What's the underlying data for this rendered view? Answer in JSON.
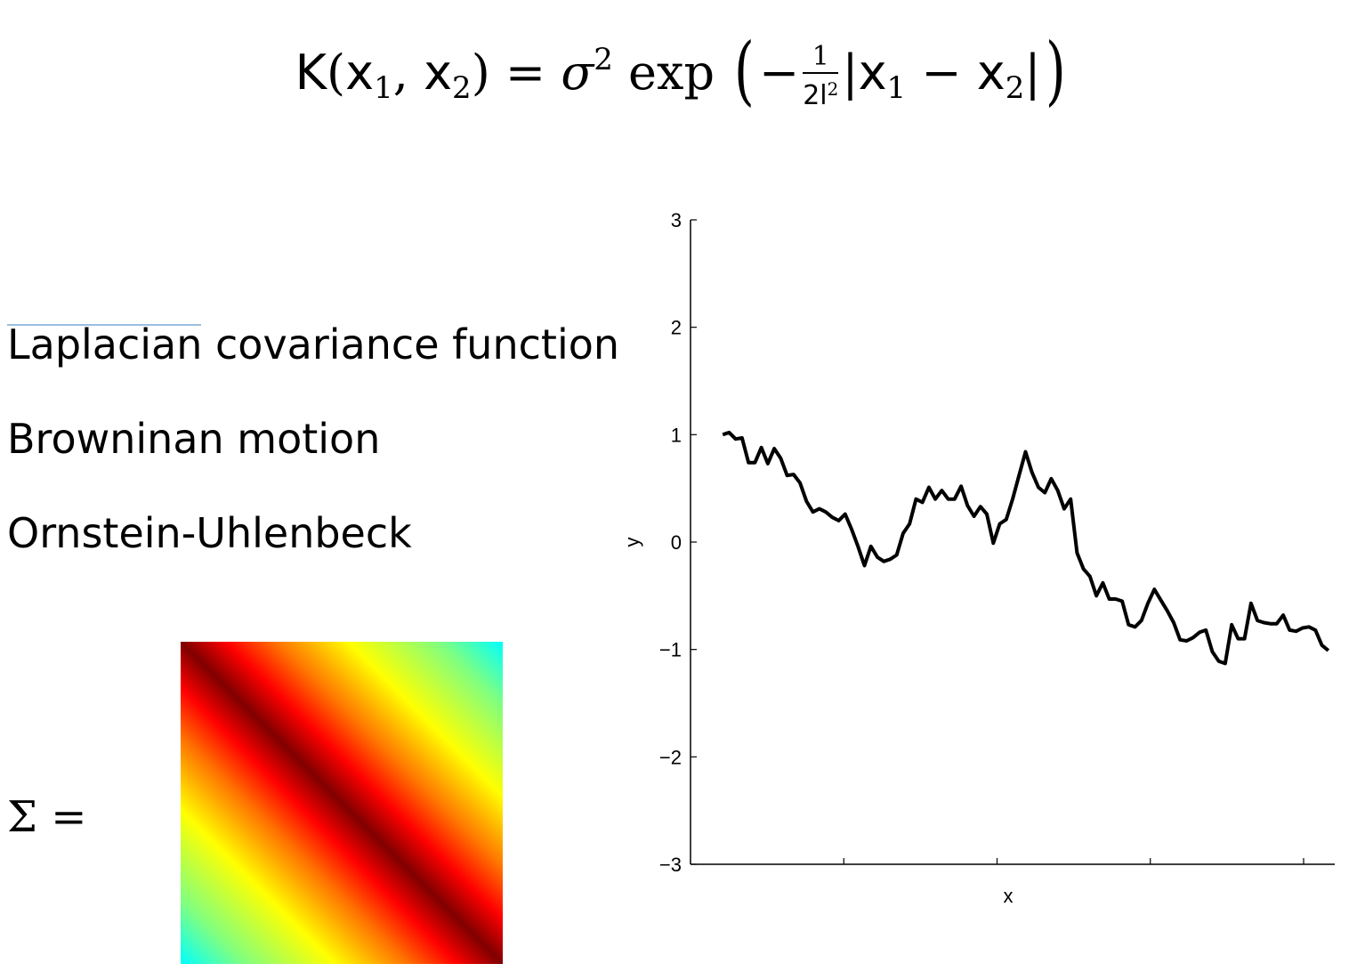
{
  "formula": {
    "lhs_K": "K",
    "lhs_args": "x",
    "sigma": "σ",
    "exp": "exp",
    "frac_num": "1",
    "frac_den": "2l",
    "x1": "x",
    "x2": "x",
    "sub1": "1",
    "sub2": "2",
    "sup2": "2"
  },
  "labels": [
    "Laplacian covariance function",
    "Browninan motion",
    "Ornstein-Uhlenbeck"
  ],
  "sigma_label": "Σ =",
  "colors": {
    "line": "#000000",
    "matrix_diag": "#800000",
    "matrix_edge": "#00ffff"
  },
  "chart_data": {
    "type": "line",
    "xlabel": "x",
    "ylabel": "y",
    "ylim": [
      -3,
      3
    ],
    "xlim": [
      0,
      1
    ],
    "yticks": [
      "−3",
      "−2",
      "−1",
      "0",
      "1",
      "2",
      "3"
    ],
    "grid": false,
    "series": [
      {
        "values_x": [
          0.05,
          0.06,
          0.07,
          0.08,
          0.09,
          0.1,
          0.11,
          0.12,
          0.13,
          0.14,
          0.15,
          0.16,
          0.17,
          0.18,
          0.19,
          0.2,
          0.21,
          0.22,
          0.23,
          0.24,
          0.25,
          0.26,
          0.27,
          0.28,
          0.29,
          0.3,
          0.31,
          0.32,
          0.33,
          0.34,
          0.35,
          0.36,
          0.37,
          0.38,
          0.39,
          0.4,
          0.41,
          0.42,
          0.43,
          0.44,
          0.45,
          0.46,
          0.47,
          0.48,
          0.49,
          0.5,
          0.51,
          0.52,
          0.53,
          0.54,
          0.55,
          0.56,
          0.57,
          0.58,
          0.59,
          0.6,
          0.61,
          0.62,
          0.63,
          0.64,
          0.65,
          0.66,
          0.67,
          0.68,
          0.69,
          0.7,
          0.71,
          0.72,
          0.73,
          0.74,
          0.75,
          0.76,
          0.77,
          0.78,
          0.79,
          0.8,
          0.81,
          0.82,
          0.83,
          0.84,
          0.85,
          0.86,
          0.87,
          0.88,
          0.89,
          0.9,
          0.91,
          0.92,
          0.93,
          0.94,
          0.95,
          0.96,
          0.97,
          0.98,
          0.99
        ],
        "values_y": [
          1.0,
          1.02,
          0.96,
          0.97,
          0.74,
          0.74,
          0.88,
          0.73,
          0.87,
          0.78,
          0.62,
          0.63,
          0.55,
          0.38,
          0.28,
          0.31,
          0.28,
          0.23,
          0.2,
          0.26,
          0.12,
          -0.04,
          -0.22,
          -0.04,
          -0.14,
          -0.18,
          -0.16,
          -0.12,
          0.08,
          0.17,
          0.4,
          0.37,
          0.51,
          0.4,
          0.48,
          0.4,
          0.4,
          0.52,
          0.34,
          0.24,
          0.33,
          0.26,
          -0.01,
          0.17,
          0.21,
          0.4,
          0.62,
          0.84,
          0.65,
          0.51,
          0.46,
          0.59,
          0.48,
          0.31,
          0.4,
          -0.1,
          -0.25,
          -0.32,
          -0.5,
          -0.38,
          -0.53,
          -0.53,
          -0.55,
          -0.77,
          -0.79,
          -0.73,
          -0.57,
          -0.44,
          -0.54,
          -0.64,
          -0.75,
          -0.91,
          -0.92,
          -0.89,
          -0.84,
          -0.82,
          -1.02,
          -1.11,
          -1.13,
          -0.77,
          -0.9,
          -0.9,
          -0.57,
          -0.73,
          -0.75,
          -0.76,
          -0.76,
          -0.68,
          -0.82,
          -0.83,
          -0.8,
          -0.79,
          -0.82,
          -0.96,
          -1.01
        ]
      }
    ]
  }
}
